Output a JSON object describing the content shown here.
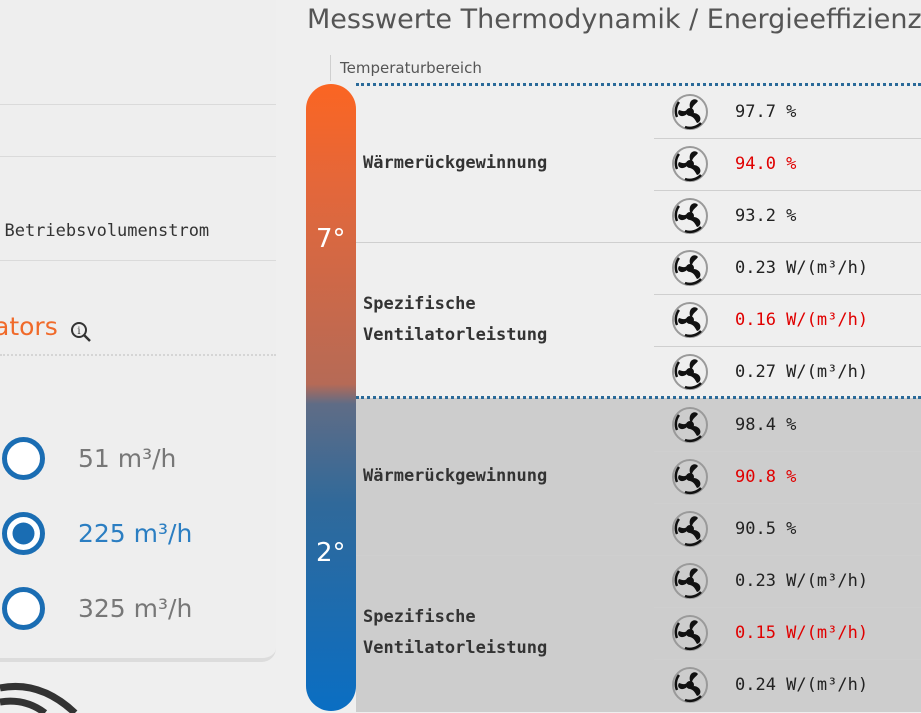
{
  "left": {
    "text_betriebsvolumenstrom": "r Betriebsvolumenstrom",
    "heading_partial": "ators",
    "radio_options": [
      {
        "label": "51 m³/h",
        "selected": false
      },
      {
        "label": "225 m³/h",
        "selected": true
      },
      {
        "label": "325 m³/h",
        "selected": false
      }
    ]
  },
  "right": {
    "title": "Messwerte Thermodynamik / Energieeffizienz",
    "column_header": "Temperaturbereich",
    "colors": {
      "red_value": "#e00000",
      "accent_orange": "#f06a2a",
      "accent_blue": "#2b7ec2"
    },
    "sections": [
      {
        "temperature": "7°",
        "groups": [
          {
            "label": "Wärmerückgewinnung",
            "values": [
              "97.7 %",
              "94.0 %",
              "93.2 %"
            ],
            "highlight": [
              false,
              true,
              false
            ]
          },
          {
            "label_lines": [
              "Spezifische",
              "Ventilatorleistung"
            ],
            "values": [
              "0.23 W/(m³/h)",
              "0.16 W/(m³/h)",
              "0.27 W/(m³/h)"
            ],
            "highlight": [
              false,
              true,
              false
            ]
          }
        ]
      },
      {
        "temperature": "2°",
        "groups": [
          {
            "label": "Wärmerückgewinnung",
            "values": [
              "98.4 %",
              "90.8 %",
              "90.5 %"
            ],
            "highlight": [
              false,
              true,
              false
            ]
          },
          {
            "label_lines": [
              "Spezifische",
              "Ventilatorleistung"
            ],
            "values": [
              "0.23 W/(m³/h)",
              "0.15 W/(m³/h)",
              "0.24 W/(m³/h)"
            ],
            "highlight": [
              false,
              true,
              false
            ]
          }
        ]
      }
    ]
  }
}
